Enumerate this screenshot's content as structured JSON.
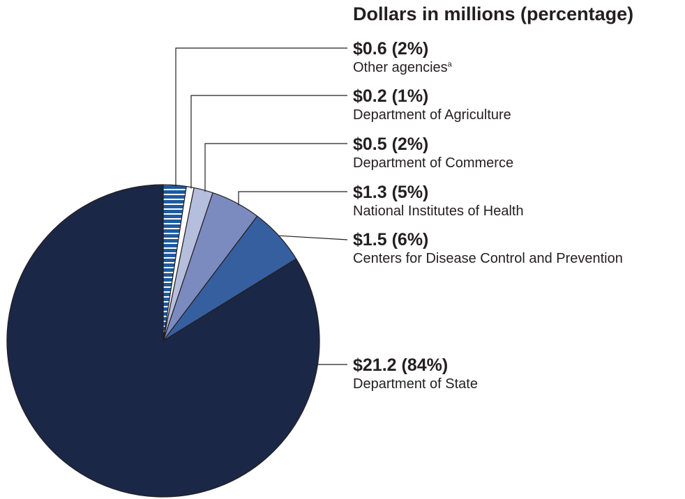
{
  "unit_title": "Dollars in millions (percentage)",
  "chart_data": {
    "type": "pie",
    "start_angle_deg": 0,
    "direction": "clockwise",
    "outline_color": "#231f20",
    "slices": [
      {
        "name": "Other agencies",
        "footnote": "a",
        "value": 0.6,
        "percent": 2,
        "value_label": "$0.6 (2%)",
        "color": "#1d5aa0",
        "pattern": "horizontal-stripes"
      },
      {
        "name": "Department of Agriculture",
        "value": 0.2,
        "percent": 1,
        "value_label": "$0.2 (1%)",
        "color": "#ffffff"
      },
      {
        "name": "Department of Commerce",
        "value": 0.5,
        "percent": 2,
        "value_label": "$0.5 (2%)",
        "color": "#b6bede"
      },
      {
        "name": "National Institutes of Health",
        "value": 1.3,
        "percent": 5,
        "value_label": "$1.3 (5%)",
        "color": "#7b8bc0"
      },
      {
        "name": "Centers for Disease Control and Prevention",
        "value": 1.5,
        "percent": 6,
        "value_label": "$1.5 (6%)",
        "color": "#365fa0"
      },
      {
        "name": "Department of State",
        "value": 21.2,
        "percent": 84,
        "value_label": "$21.2 (84%)",
        "color": "#1a2747"
      }
    ]
  }
}
